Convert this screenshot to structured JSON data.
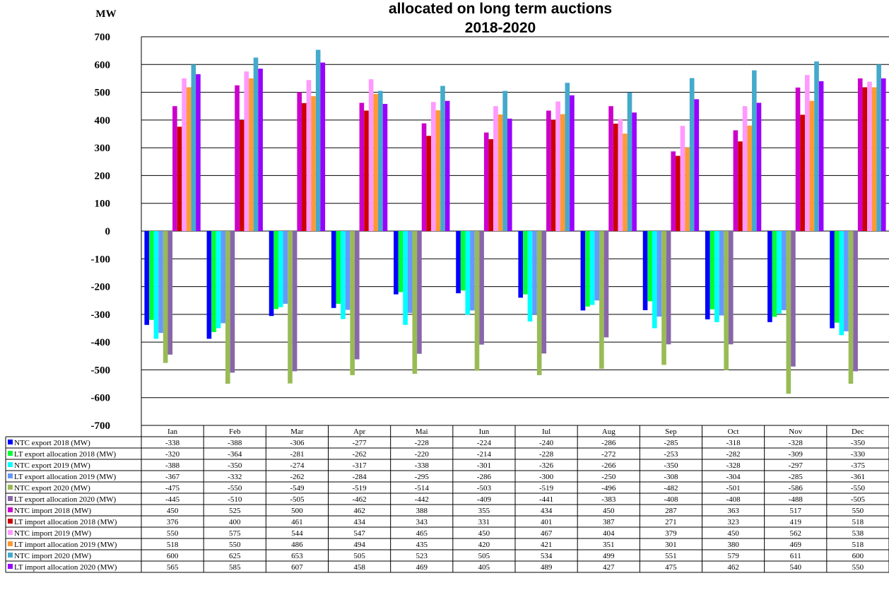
{
  "chart_data": {
    "type": "bar",
    "title_lines": [
      "allocated on long term auctions",
      "2018-2020"
    ],
    "ylabel": "MW",
    "ylim": [
      -700,
      700
    ],
    "yticks": [
      700,
      600,
      500,
      400,
      300,
      200,
      100,
      0,
      -100,
      -200,
      -300,
      -400,
      -500,
      -600,
      -700
    ],
    "grid": true,
    "legend": "data-table-left",
    "categories": [
      "Ian",
      "Feb",
      "Mar",
      "Apr",
      "Mai",
      "Iun",
      "Iul",
      "Aug",
      "Sep",
      "Oct",
      "Nov",
      "Dec"
    ],
    "series": [
      {
        "name": "NTC export 2018 (MW)",
        "color": "#0000ff",
        "values": [
          -338,
          -388,
          -306,
          -277,
          -228,
          -224,
          -240,
          -286,
          -285,
          -318,
          -328,
          -350
        ]
      },
      {
        "name": "LT export allocation 2018 (MW)",
        "color": "#00ff33",
        "values": [
          -320,
          -364,
          -281,
          -262,
          -220,
          -214,
          -228,
          -272,
          -253,
          -282,
          -309,
          -330
        ]
      },
      {
        "name": "NTC export 2019 (MW)",
        "color": "#00ffff",
        "values": [
          -388,
          -350,
          -274,
          -317,
          -338,
          -301,
          -326,
          -266,
          -350,
          -328,
          -297,
          -375
        ]
      },
      {
        "name": "LT export allocation 2019 (MW)",
        "color": "#6699ff",
        "values": [
          -367,
          -332,
          -262,
          -284,
          -295,
          -286,
          -300,
          -250,
          -308,
          -304,
          -285,
          -361
        ]
      },
      {
        "name": "NTC export 2020 (MW)",
        "color": "#99bb55",
        "values": [
          -475,
          -550,
          -549,
          -519,
          -514,
          -503,
          -519,
          -496,
          -482,
          -501,
          -586,
          -550
        ]
      },
      {
        "name": "LT export allocation 2020 (MW)",
        "color": "#8866aa",
        "values": [
          -445,
          -510,
          -505,
          -462,
          -442,
          -409,
          -441,
          -383,
          -408,
          -408,
          -488,
          -505
        ]
      },
      {
        "name": "NTC import 2018 (MW)",
        "color": "#cc00cc",
        "values": [
          450,
          525,
          500,
          462,
          388,
          355,
          434,
          450,
          287,
          363,
          517,
          550
        ]
      },
      {
        "name": "LT import allocation 2018 (MW)",
        "color": "#cc0000",
        "values": [
          376,
          400,
          461,
          434,
          343,
          331,
          401,
          387,
          271,
          323,
          419,
          518
        ]
      },
      {
        "name": "NTC import 2019 (MW)",
        "color": "#ff99ff",
        "values": [
          550,
          575,
          544,
          547,
          465,
          450,
          467,
          404,
          379,
          450,
          562,
          538
        ]
      },
      {
        "name": "LT import allocation 2019 (MW)",
        "color": "#ff9933",
        "values": [
          518,
          550,
          486,
          494,
          435,
          420,
          421,
          351,
          301,
          380,
          469,
          518
        ]
      },
      {
        "name": "NTC import 2020 (MW)",
        "color": "#44aacc",
        "values": [
          600,
          625,
          653,
          505,
          523,
          505,
          534,
          499,
          551,
          579,
          611,
          600
        ]
      },
      {
        "name": "LT import allocation 2020 (MW)",
        "color": "#9900ff",
        "values": [
          565,
          585,
          607,
          458,
          469,
          405,
          489,
          427,
          475,
          462,
          540,
          550
        ]
      }
    ]
  }
}
